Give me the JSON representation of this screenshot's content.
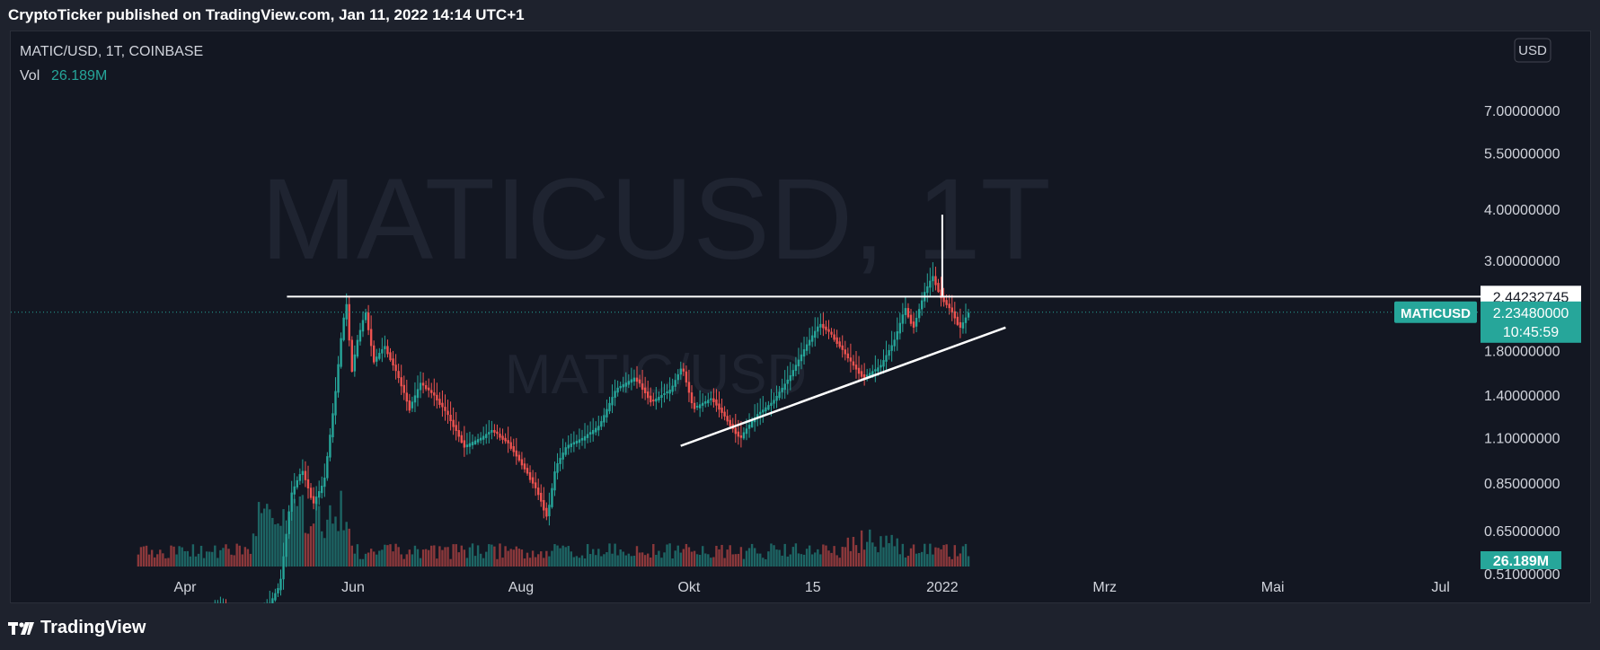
{
  "header": {
    "publish_text": "CryptoTicker published on TradingView.com, Jan 11, 2022 14:14 UTC+1"
  },
  "legend": {
    "symbol_line": "MATIC/USD, 1T, COINBASE",
    "vol_label": "Vol",
    "vol_value": "26.189M"
  },
  "watermark": {
    "main": "MATICUSD, 1T",
    "sub": "MATIC/USD"
  },
  "footer": {
    "brand": "TradingView"
  },
  "currency_badge": "USD",
  "colors": {
    "up": "#26a69a",
    "down": "#ef5350",
    "background": "#131722",
    "text": "#b2b5be",
    "line": "#ffffff"
  },
  "chart_data": {
    "type": "candlestick",
    "series_name": "MATICUSD",
    "y_scale": "log",
    "ylim": [
      0.46,
      7.2
    ],
    "y_ticks": [
      {
        "value": 7.0,
        "label": "7.00000000"
      },
      {
        "value": 5.5,
        "label": "5.50000000"
      },
      {
        "value": 4.0,
        "label": "4.00000000"
      },
      {
        "value": 3.0,
        "label": "3.00000000"
      },
      {
        "value": 1.8,
        "label": "1.80000000"
      },
      {
        "value": 1.4,
        "label": "1.40000000"
      },
      {
        "value": 1.1,
        "label": "1.10000000"
      },
      {
        "value": 0.85,
        "label": "0.85000000"
      },
      {
        "value": 0.65,
        "label": "0.65000000"
      },
      {
        "value": 0.51,
        "label": "0.51000000"
      }
    ],
    "x_ticks": [
      "Apr",
      "Jun",
      "Aug",
      "Okt",
      "15",
      "2022",
      "Mrz",
      "Mai",
      "Jul"
    ],
    "x_tick_dates": [
      "2021-04-01",
      "2021-06-01",
      "2021-08-01",
      "2021-10-01",
      "2021-11-15",
      "2022-01-01",
      "2022-03-01",
      "2022-05-01",
      "2022-07-01"
    ],
    "price_path": [
      {
        "date": "2021-03-15",
        "price": 0.38
      },
      {
        "date": "2021-03-28",
        "price": 0.33
      },
      {
        "date": "2021-04-15",
        "price": 0.42
      },
      {
        "date": "2021-04-25",
        "price": 0.35
      },
      {
        "date": "2021-05-06",
        "price": 0.48
      },
      {
        "date": "2021-05-10",
        "price": 0.8
      },
      {
        "date": "2021-05-14",
        "price": 0.92
      },
      {
        "date": "2021-05-18",
        "price": 0.76
      },
      {
        "date": "2021-05-22",
        "price": 0.86
      },
      {
        "date": "2021-05-26",
        "price": 1.4
      },
      {
        "date": "2021-05-28",
        "price": 1.9
      },
      {
        "date": "2021-05-30",
        "price": 2.4
      },
      {
        "date": "2021-06-01",
        "price": 1.6
      },
      {
        "date": "2021-06-03",
        "price": 1.9
      },
      {
        "date": "2021-06-06",
        "price": 2.25
      },
      {
        "date": "2021-06-09",
        "price": 1.7
      },
      {
        "date": "2021-06-13",
        "price": 1.85
      },
      {
        "date": "2021-06-18",
        "price": 1.55
      },
      {
        "date": "2021-06-22",
        "price": 1.3
      },
      {
        "date": "2021-06-26",
        "price": 1.5
      },
      {
        "date": "2021-07-01",
        "price": 1.4
      },
      {
        "date": "2021-07-06",
        "price": 1.25
      },
      {
        "date": "2021-07-12",
        "price": 1.05
      },
      {
        "date": "2021-07-18",
        "price": 1.1
      },
      {
        "date": "2021-07-22",
        "price": 1.15
      },
      {
        "date": "2021-07-28",
        "price": 1.07
      },
      {
        "date": "2021-08-04",
        "price": 0.9
      },
      {
        "date": "2021-08-08",
        "price": 0.8
      },
      {
        "date": "2021-08-11",
        "price": 0.7
      },
      {
        "date": "2021-08-14",
        "price": 0.93
      },
      {
        "date": "2021-08-18",
        "price": 1.05
      },
      {
        "date": "2021-08-24",
        "price": 1.1
      },
      {
        "date": "2021-08-30",
        "price": 1.18
      },
      {
        "date": "2021-09-05",
        "price": 1.45
      },
      {
        "date": "2021-09-12",
        "price": 1.55
      },
      {
        "date": "2021-09-18",
        "price": 1.35
      },
      {
        "date": "2021-09-25",
        "price": 1.45
      },
      {
        "date": "2021-09-29",
        "price": 1.65
      },
      {
        "date": "2021-10-03",
        "price": 1.3
      },
      {
        "date": "2021-10-10",
        "price": 1.38
      },
      {
        "date": "2021-10-16",
        "price": 1.2
      },
      {
        "date": "2021-10-20",
        "price": 1.1
      },
      {
        "date": "2021-10-26",
        "price": 1.25
      },
      {
        "date": "2021-11-01",
        "price": 1.35
      },
      {
        "date": "2021-11-07",
        "price": 1.55
      },
      {
        "date": "2021-11-13",
        "price": 1.85
      },
      {
        "date": "2021-11-18",
        "price": 2.1
      },
      {
        "date": "2021-11-23",
        "price": 1.95
      },
      {
        "date": "2021-11-29",
        "price": 1.7
      },
      {
        "date": "2021-12-04",
        "price": 1.55
      },
      {
        "date": "2021-12-10",
        "price": 1.65
      },
      {
        "date": "2021-12-15",
        "price": 1.9
      },
      {
        "date": "2021-12-19",
        "price": 2.3
      },
      {
        "date": "2021-12-22",
        "price": 2.05
      },
      {
        "date": "2021-12-26",
        "price": 2.5
      },
      {
        "date": "2021-12-29",
        "price": 2.75
      },
      {
        "date": "2022-01-01",
        "price": 2.45
      },
      {
        "date": "2022-01-05",
        "price": 2.25
      },
      {
        "date": "2022-01-08",
        "price": 2.05
      },
      {
        "date": "2022-01-11",
        "price": 2.23
      }
    ],
    "annotations": {
      "resistance_line": {
        "price": 2.44232745,
        "from": "2021-05-08",
        "to": "2022-07-31"
      },
      "support_trendline": [
        {
          "date": "2021-09-28",
          "price": 1.05
        },
        {
          "date": "2022-01-24",
          "price": 2.05
        }
      ],
      "vertical_marker": {
        "date": "2022-01-01",
        "from": 2.44232745,
        "to": 3.88
      }
    },
    "price_labels": {
      "resistance": {
        "value": 2.44232745,
        "text": "2.44232745"
      },
      "last": {
        "value": 2.2348,
        "text": "2.23480000",
        "countdown": "10:45:59",
        "symbol": "MATICUSD"
      },
      "volume": {
        "text": "26.189M"
      }
    }
  }
}
